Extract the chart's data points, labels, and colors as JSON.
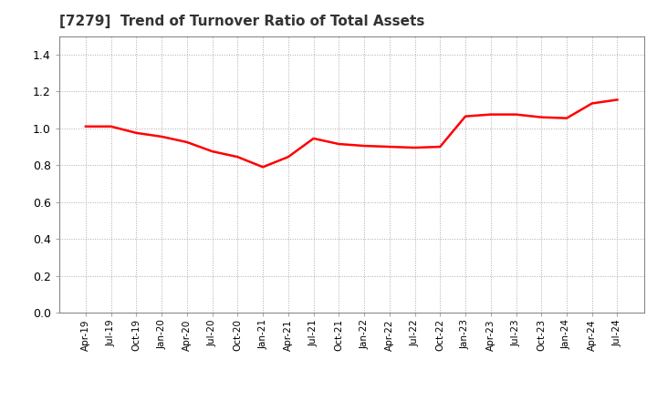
{
  "title": "[7279]  Trend of Turnover Ratio of Total Assets",
  "title_fontsize": 11,
  "line_color": "#ff0000",
  "line_width": 1.8,
  "background_color": "#ffffff",
  "grid_color": "#aaaaaa",
  "ylim": [
    0.0,
    1.5
  ],
  "yticks": [
    0.0,
    0.2,
    0.4,
    0.6,
    0.8,
    1.0,
    1.2,
    1.4
  ],
  "x_labels": [
    "Apr-19",
    "Jul-19",
    "Oct-19",
    "Jan-20",
    "Apr-20",
    "Jul-20",
    "Oct-20",
    "Jan-21",
    "Apr-21",
    "Jul-21",
    "Oct-21",
    "Jan-22",
    "Apr-22",
    "Jul-22",
    "Oct-22",
    "Jan-23",
    "Apr-23",
    "Jul-23",
    "Oct-23",
    "Jan-24",
    "Apr-24",
    "Jul-24"
  ],
  "values": [
    1.01,
    1.01,
    0.975,
    0.955,
    0.925,
    0.875,
    0.845,
    0.79,
    0.845,
    0.945,
    0.915,
    0.905,
    0.9,
    0.895,
    0.9,
    1.065,
    1.075,
    1.075,
    1.06,
    1.055,
    1.135,
    1.155
  ]
}
